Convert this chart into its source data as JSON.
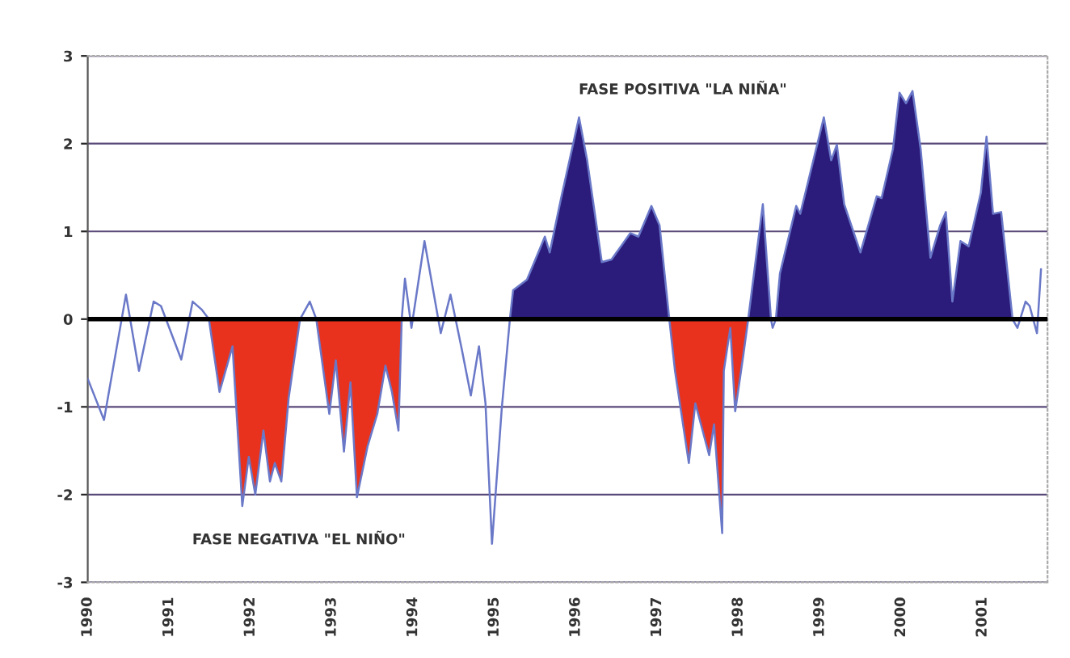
{
  "chart_data": {
    "type": "line",
    "xlim": [
      1990,
      2001.8
    ],
    "ylim": [
      -3,
      3
    ],
    "xticks": [
      1990,
      1991,
      1992,
      1993,
      1994,
      1995,
      1996,
      1997,
      1998,
      1999,
      2000,
      2001
    ],
    "yticks": [
      -3,
      -2,
      -1,
      0,
      1,
      2,
      3
    ],
    "grid": "y",
    "legend": false,
    "ref_lines": [
      {
        "axis": "y",
        "value": 0,
        "color": "#000000"
      }
    ],
    "annotations": [
      "FASE POSITIVA \"LA NIÑA\"",
      "FASE NEGATIVA \"EL NIÑO\""
    ],
    "series": [
      {
        "type": "area",
        "color": "#e8321e",
        "x": [
          1991.49,
          1991.62,
          1991.78,
          1991.9,
          1991.98,
          1992.06,
          1992.16,
          1992.24,
          1992.3,
          1992.38,
          1992.47,
          1992.61,
          1992.73,
          1992.81,
          1992.97,
          1993.05,
          1993.15,
          1993.23,
          1993.31,
          1993.44,
          1993.56,
          1993.66,
          1993.74,
          1993.82,
          1993.86,
          1995.0,
          1997.15,
          1997.22,
          1997.39,
          1997.47,
          1997.64,
          1997.7,
          1997.8,
          1997.82,
          1997.9,
          1997.96,
          1998.06,
          1998.12
        ],
        "values": [
          0,
          -0.83,
          -0.31,
          -2.13,
          -1.57,
          -2.0,
          -1.27,
          -1.85,
          -1.64,
          -1.85,
          -0.9,
          0,
          null,
          0,
          -1.08,
          -0.47,
          -1.51,
          -0.72,
          -2.03,
          -1.45,
          -1.08,
          -0.53,
          -0.83,
          -1.27,
          0,
          null,
          0,
          -0.59,
          -1.64,
          -0.96,
          -1.55,
          -1.2,
          -2.44,
          -0.59,
          -0.1,
          -1.05,
          -0.41,
          0
        ]
      },
      {
        "type": "area",
        "color": "#2b1b7a",
        "x": [
          1995.19,
          1995.23,
          1995.4,
          1995.54,
          1995.62,
          1995.68,
          1995.82,
          1996.04,
          1996.14,
          1996.32,
          1996.44,
          1996.67,
          1996.77,
          1996.93,
          1997.03,
          1997.15,
          1997.5,
          1998.12,
          1998.3,
          1998.4,
          1998.42,
          1998.46,
          1998.51,
          1998.71,
          1998.76,
          1999.05,
          1999.14,
          1999.21,
          1999.3,
          1999.5,
          1999.7,
          1999.76,
          1999.9,
          1999.98,
          2000.06,
          2000.14,
          2000.24,
          2000.36,
          2000.48,
          2000.55,
          2000.63,
          2000.73,
          2000.83,
          2000.98,
          2001.05,
          2001.13,
          2001.23,
          2001.37
        ],
        "values": [
          0,
          0.33,
          0.45,
          0.76,
          0.94,
          0.76,
          1.38,
          2.3,
          1.81,
          0.65,
          0.68,
          0.98,
          0.94,
          1.29,
          1.07,
          0,
          null,
          0,
          1.31,
          0,
          null,
          0,
          0.52,
          1.29,
          1.2,
          2.3,
          1.81,
          1.99,
          1.31,
          0.76,
          1.4,
          1.38,
          1.94,
          2.58,
          2.46,
          2.6,
          1.94,
          0.7,
          1.07,
          1.22,
          0.2,
          0.89,
          0.83,
          1.44,
          2.08,
          1.2,
          1.22,
          0
        ]
      },
      {
        "color": "#6a78c8",
        "x": [
          1990.0,
          1990.2,
          1990.47,
          1990.63,
          1990.81,
          1990.9,
          1991.15,
          1991.29,
          1991.4,
          1991.49,
          1991.62,
          1991.78,
          1991.9,
          1991.98,
          1992.06,
          1992.16,
          1992.24,
          1992.3,
          1992.38,
          1992.47,
          1992.61,
          1992.73,
          1992.81,
          1992.97,
          1993.05,
          1993.15,
          1993.23,
          1993.31,
          1993.44,
          1993.56,
          1993.66,
          1993.74,
          1993.82,
          1993.86,
          1993.9,
          1993.98,
          1994.14,
          1994.34,
          1994.46,
          1994.6,
          1994.71,
          1994.81,
          1994.89,
          1994.97,
          1995.09,
          1995.19,
          1995.23,
          1995.4,
          1995.54,
          1995.62,
          1995.68,
          1995.82,
          1996.04,
          1996.14,
          1996.32,
          1996.44,
          1996.67,
          1996.77,
          1996.93,
          1997.03,
          1997.15,
          1997.22,
          1997.39,
          1997.47,
          1997.64,
          1997.7,
          1997.8,
          1997.82,
          1997.9,
          1997.96,
          1998.06,
          1998.12,
          1998.3,
          1998.4,
          1998.42,
          1998.46,
          1998.51,
          1998.71,
          1998.76,
          1999.05,
          1999.14,
          1999.21,
          1999.3,
          1999.5,
          1999.7,
          1999.76,
          1999.9,
          1999.98,
          2000.06,
          2000.14,
          2000.24,
          2000.36,
          2000.48,
          2000.55,
          2000.63,
          2000.73,
          2000.83,
          2000.98,
          2001.05,
          2001.13,
          2001.23,
          2001.37,
          2001.43,
          2001.53,
          2001.58,
          2001.67,
          2001.72
        ],
        "values": [
          -0.68,
          -1.15,
          0.28,
          -0.59,
          0.2,
          0.15,
          -0.46,
          0.2,
          0.11,
          0,
          -0.83,
          -0.31,
          -2.13,
          -1.57,
          -2.0,
          -1.27,
          -1.85,
          -1.64,
          -1.85,
          -0.9,
          0,
          0.2,
          0,
          -1.08,
          -0.47,
          -1.51,
          -0.72,
          -2.03,
          -1.45,
          -1.08,
          -0.53,
          -0.83,
          -1.27,
          0,
          0.46,
          -0.1,
          0.89,
          -0.16,
          0.28,
          -0.35,
          -0.87,
          -0.31,
          -0.96,
          -2.56,
          -1.02,
          0,
          0.33,
          0.45,
          0.76,
          0.94,
          0.76,
          1.38,
          2.3,
          1.81,
          0.65,
          0.68,
          0.98,
          0.94,
          1.29,
          1.07,
          0,
          -0.59,
          -1.64,
          -0.96,
          -1.55,
          -1.2,
          -2.44,
          -0.59,
          -0.1,
          -1.05,
          -0.41,
          0,
          1.31,
          0,
          -0.1,
          0,
          0.52,
          1.29,
          1.2,
          2.3,
          1.81,
          1.99,
          1.31,
          0.76,
          1.4,
          1.38,
          1.94,
          2.58,
          2.46,
          2.6,
          1.94,
          0.7,
          1.07,
          1.22,
          0.2,
          0.89,
          0.83,
          1.44,
          2.08,
          1.2,
          1.22,
          0,
          -0.1,
          0.2,
          0.15,
          -0.16,
          0.57
        ]
      }
    ]
  }
}
